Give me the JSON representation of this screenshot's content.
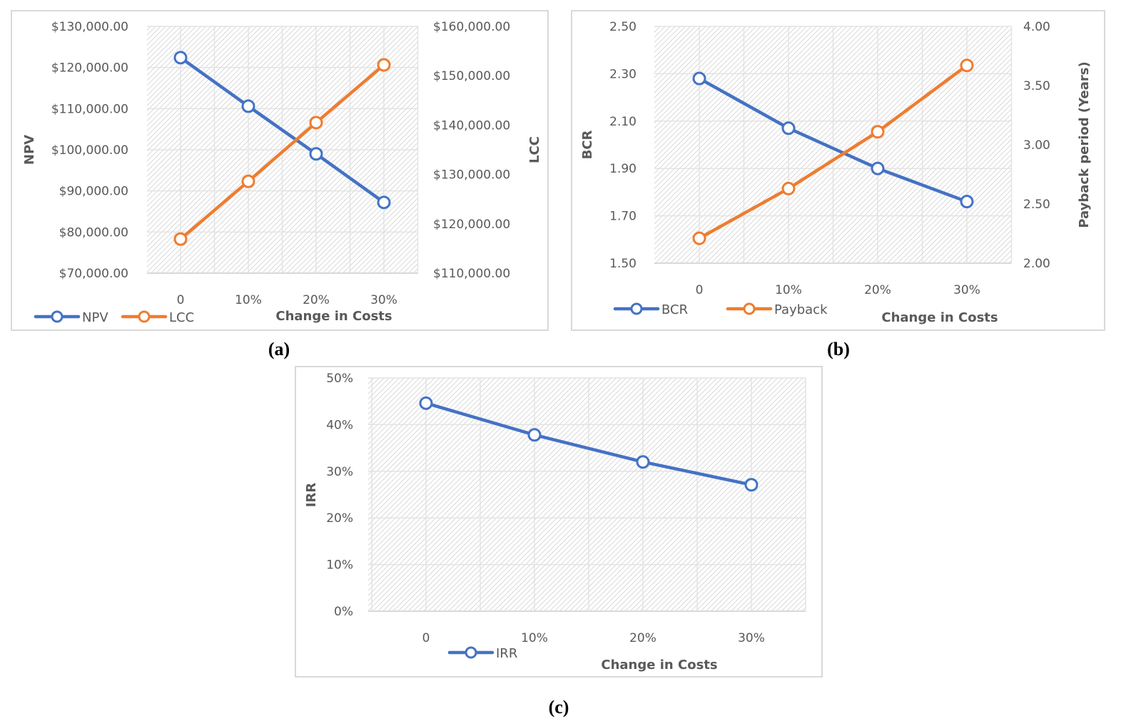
{
  "colors": {
    "series_blue": "#4472c4",
    "series_orange": "#ed7d31",
    "grid": "#e3e3e3",
    "hatch": "#d0d0d0",
    "text": "#595959",
    "border": "#d9d9d9"
  },
  "chart_data": [
    {
      "id": "a",
      "caption": "(a)",
      "type": "line",
      "categories": [
        "0",
        "10%",
        "20%",
        "30%"
      ],
      "xlabel": "Change in Costs",
      "ylabel": "NPV",
      "y2label": "LCC",
      "ylim": [
        70000,
        130000
      ],
      "y2lim": [
        110000,
        160000
      ],
      "yticks": [
        "$70,000.00",
        "$80,000.00",
        "$90,000.00",
        "$100,000.00",
        "$110,000.00",
        "$120,000.00",
        "$130,000.00"
      ],
      "y2ticks": [
        "$110,000.00",
        "$120,000.00",
        "$130,000.00",
        "$140,000.00",
        "$150,000.00",
        "$160,000.00"
      ],
      "grid": true,
      "legend_position": "bottom-left",
      "series": [
        {
          "name": "NPV",
          "axis": "left",
          "color": "#4472c4",
          "values": [
            122400,
            110600,
            99000,
            87200
          ]
        },
        {
          "name": "LCC",
          "axis": "right",
          "color": "#ed7d31",
          "values": [
            116900,
            128600,
            140500,
            152200
          ]
        }
      ]
    },
    {
      "id": "b",
      "caption": "(b)",
      "type": "line",
      "categories": [
        "0",
        "10%",
        "20%",
        "30%"
      ],
      "xlabel": "Change in Costs",
      "ylabel": "BCR",
      "y2label": "Payback period (Years)",
      "ylim": [
        1.5,
        2.5
      ],
      "y2lim": [
        2.0,
        4.0
      ],
      "yticks": [
        "1.50",
        "1.70",
        "1.90",
        "2.10",
        "2.30",
        "2.50"
      ],
      "y2ticks": [
        "2.00",
        "2.50",
        "3.00",
        "3.50",
        "4.00"
      ],
      "grid": true,
      "legend_position": "bottom-left",
      "series": [
        {
          "name": "BCR",
          "axis": "left",
          "color": "#4472c4",
          "values": [
            2.28,
            2.07,
            1.9,
            1.76
          ]
        },
        {
          "name": "Payback",
          "axis": "right",
          "color": "#ed7d31",
          "values": [
            2.21,
            2.63,
            3.11,
            3.67
          ]
        }
      ]
    },
    {
      "id": "c",
      "caption": "(c)",
      "type": "line",
      "categories": [
        "0",
        "10%",
        "20%",
        "30%"
      ],
      "xlabel": "Change in Costs",
      "ylabel": "IRR",
      "ylim": [
        0,
        50
      ],
      "yticks": [
        "0%",
        "10%",
        "20%",
        "30%",
        "40%",
        "50%"
      ],
      "grid": true,
      "legend_position": "bottom-left",
      "series": [
        {
          "name": "IRR",
          "axis": "left",
          "color": "#4472c4",
          "values": [
            44.6,
            37.8,
            32.0,
            27.1
          ]
        }
      ]
    }
  ]
}
